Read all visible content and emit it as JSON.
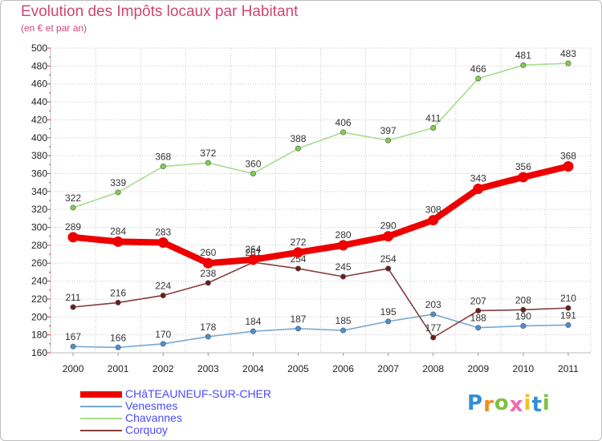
{
  "header": {
    "title": "Evolution des Impôts locaux par Habitant",
    "subtitle": "(en € et par an)"
  },
  "logo": {
    "text": "Proxiti",
    "letter_colors": [
      "#2f8fd8",
      "#f28c1f",
      "#7dc142",
      "#f06ab0",
      "#f5c022",
      "#2f8fd8",
      "#7dc142"
    ]
  },
  "colors": {
    "grid": "#c8c8c8",
    "axis_ticks": "#e03a3a"
  },
  "chart_data": {
    "type": "line",
    "title": "Evolution des Impôts locaux par Habitant",
    "subtitle": "(en € et par an)",
    "xlabel": "",
    "ylabel": "",
    "x": [
      "2000",
      "2001",
      "2002",
      "2003",
      "2004",
      "2005",
      "2006",
      "2007",
      "2008",
      "2009",
      "2010",
      "2011"
    ],
    "ylim": [
      160,
      500
    ],
    "yticks": [
      160,
      180,
      200,
      220,
      240,
      260,
      280,
      300,
      320,
      340,
      360,
      380,
      400,
      420,
      440,
      460,
      480,
      500
    ],
    "grid": true,
    "legend_position": "bottom-left",
    "series": [
      {
        "name": "CHâTEAUNEUF-SUR-CHER",
        "values": [
          289,
          284,
          283,
          260,
          264,
          272,
          280,
          290,
          308,
          343,
          356,
          368
        ],
        "color": "#ee0000",
        "marker": "#ee0000"
      },
      {
        "name": "Venesmes",
        "values": [
          167,
          166,
          170,
          178,
          184,
          187,
          185,
          195,
          203,
          188,
          190,
          191
        ],
        "color": "#78a8d2",
        "marker": "#4a90d0"
      },
      {
        "name": "Chavannes",
        "values": [
          322,
          339,
          368,
          372,
          360,
          388,
          406,
          397,
          411,
          466,
          481,
          483
        ],
        "color": "#a8dc8c",
        "marker": "#7ed04a"
      },
      {
        "name": "Corquoy",
        "values": [
          211,
          216,
          224,
          238,
          261,
          254,
          245,
          254,
          177,
          207,
          208,
          210
        ],
        "color": "#843c3c",
        "marker": "#6b1c1c"
      }
    ]
  }
}
